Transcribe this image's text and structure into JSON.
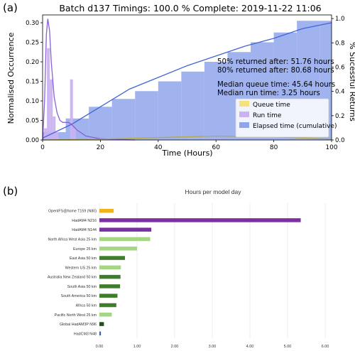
{
  "panel_a": {
    "label": "(a)"
  },
  "panel_b": {
    "label": "(b)"
  },
  "chart_data": [
    {
      "type": "bar",
      "title": "Batch d137 Timings: 100.0 % Complete: 2019-11-22 11:06",
      "xlabel": "Time (Hours)",
      "ylabel": "Normalised Occurrence",
      "y2label": "% Sucessful Returns",
      "xlim": [
        0,
        100
      ],
      "ylim": [
        0,
        0.32
      ],
      "y2lim": [
        0,
        1.03
      ],
      "xticks": [
        0,
        20,
        40,
        60,
        80,
        100
      ],
      "yticks": [
        0.0,
        0.05,
        0.1,
        0.15,
        0.2,
        0.25,
        0.3
      ],
      "y2ticks": [
        0.0,
        0.2,
        0.4,
        0.6,
        0.8,
        1.0
      ],
      "legend_position": "bottom-right",
      "annotations": [
        "50% returned after: 51.76 hours",
        "80% returned after: 80.68 hours",
        "Median queue time: 45.64 hours",
        "Median run time: 3.25 hours"
      ],
      "series": [
        {
          "name": "Elapsed time (cumulative)",
          "color": "#8fa6ec",
          "bins": [
            {
              "x0": 0,
              "x1": 8,
              "y": 0.02
            },
            {
              "x0": 8,
              "x1": 16,
              "y": 0.055
            },
            {
              "x0": 16,
              "x1": 24,
              "y": 0.085
            },
            {
              "x0": 24,
              "x1": 32,
              "y": 0.105
            },
            {
              "x0": 32,
              "x1": 40,
              "y": 0.125
            },
            {
              "x0": 40,
              "x1": 48,
              "y": 0.15
            },
            {
              "x0": 48,
              "x1": 56,
              "y": 0.175
            },
            {
              "x0": 56,
              "x1": 64,
              "y": 0.2
            },
            {
              "x0": 64,
              "x1": 72,
              "y": 0.225
            },
            {
              "x0": 72,
              "x1": 80,
              "y": 0.25
            },
            {
              "x0": 80,
              "x1": 88,
              "y": 0.275
            },
            {
              "x0": 88,
              "x1": 96,
              "y": 0.305
            },
            {
              "x0": 96,
              "x1": 100,
              "y": 0.305
            }
          ],
          "curve": [
            [
              0,
              0.005
            ],
            [
              10,
              0.04
            ],
            [
              20,
              0.085
            ],
            [
              30,
              0.13
            ],
            [
              40,
              0.16
            ],
            [
              50,
              0.19
            ],
            [
              60,
              0.215
            ],
            [
              70,
              0.24
            ],
            [
              80,
              0.26
            ],
            [
              90,
              0.285
            ],
            [
              100,
              0.3
            ]
          ]
        },
        {
          "name": "Run time",
          "color": "#c9b3f1",
          "bins": [
            {
              "x0": 0.5,
              "x1": 1.5,
              "y": 0.03
            },
            {
              "x0": 1.5,
              "x1": 2.5,
              "y": 0.235
            },
            {
              "x0": 2.5,
              "x1": 3.5,
              "y": 0.155
            },
            {
              "x0": 3.5,
              "x1": 4.5,
              "y": 0.06
            },
            {
              "x0": 4.5,
              "x1": 5.5,
              "y": 0.02
            },
            {
              "x0": 9.5,
              "x1": 10.5,
              "y": 0.155
            },
            {
              "x0": 10.5,
              "x1": 11.5,
              "y": 0.03
            }
          ],
          "curve": [
            [
              0,
              0.0
            ],
            [
              0.7,
              0.1
            ],
            [
              1.3,
              0.27
            ],
            [
              1.8,
              0.31
            ],
            [
              2.4,
              0.28
            ],
            [
              3,
              0.2
            ],
            [
              4,
              0.11
            ],
            [
              5,
              0.07
            ],
            [
              6,
              0.05
            ],
            [
              7,
              0.045
            ],
            [
              8,
              0.045
            ],
            [
              9,
              0.045
            ],
            [
              10,
              0.04
            ],
            [
              12,
              0.025
            ],
            [
              15,
              0.01
            ],
            [
              20,
              0.003
            ],
            [
              32,
              0.0
            ]
          ]
        },
        {
          "name": "Queue time",
          "color": "#f5e27a",
          "bins": [],
          "curve": [
            [
              0,
              0.0
            ],
            [
              20,
              0.002
            ],
            [
              40,
              0.006
            ],
            [
              60,
              0.01
            ],
            [
              80,
              0.008
            ],
            [
              100,
              0.002
            ]
          ]
        }
      ]
    },
    {
      "type": "bar",
      "orientation": "horizontal",
      "title": "Hours per model day",
      "xlim": [
        0,
        6
      ],
      "xticks": [
        "0.00",
        "1.00",
        "2.00",
        "3.00",
        "4.00",
        "5.00",
        "6.00"
      ],
      "categories": [
        "OpenIFS@home T159 (N80)",
        "HadAM4 N216",
        "HadAM4 N144",
        "North Africa West Asia 25 km",
        "Europe  25 km",
        "East Asia 50 km",
        "Western US 25 km",
        "Australia New Zealand 50 km",
        "South Asia 50 km",
        "South America 50 km",
        "Africa 50 km",
        "Pacific North West 25 km",
        "Global HadAM3P N96",
        "HadCM3 N48"
      ],
      "values": [
        0.38,
        5.35,
        1.38,
        1.35,
        1.0,
        0.68,
        0.57,
        0.56,
        0.55,
        0.48,
        0.45,
        0.33,
        0.12,
        0.04
      ],
      "colors": [
        "#f0b41e",
        "#7b2fa3",
        "#7b2fa3",
        "#a6d684",
        "#a6d684",
        "#3f7d2a",
        "#a6d684",
        "#3f7d2a",
        "#3f7d2a",
        "#3f7d2a",
        "#3f7d2a",
        "#a6d684",
        "#234d1b",
        "#2f5fc4"
      ]
    }
  ]
}
